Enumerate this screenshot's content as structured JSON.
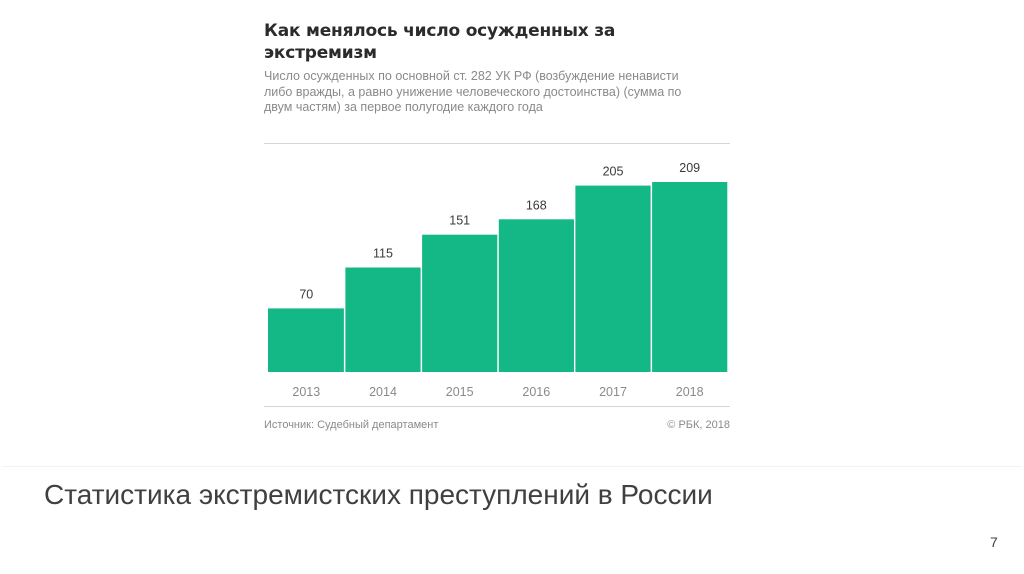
{
  "slide": {
    "title": "Статистика экстремистских преступлений в России",
    "page_number": "7"
  },
  "chart_data": {
    "type": "bar",
    "title": "Как менялось число осужденных за экстремизм",
    "subtitle": "Число осужденных по основной ст. 282 УК РФ (возбуждение ненависти либо вражды, а равно унижение человеческого достоинства) (сумма по двум частям) за первое полугодие каждого года",
    "categories": [
      "2013",
      "2014",
      "2015",
      "2016",
      "2017",
      "2018"
    ],
    "values": [
      70,
      115,
      151,
      168,
      205,
      209
    ],
    "ylim": [
      0,
      209
    ],
    "bar_color": "#14b886",
    "axis_label_color": "#8a8a8a",
    "source": "Источник: Судебный департамент",
    "credit": "© РБК, 2018"
  }
}
